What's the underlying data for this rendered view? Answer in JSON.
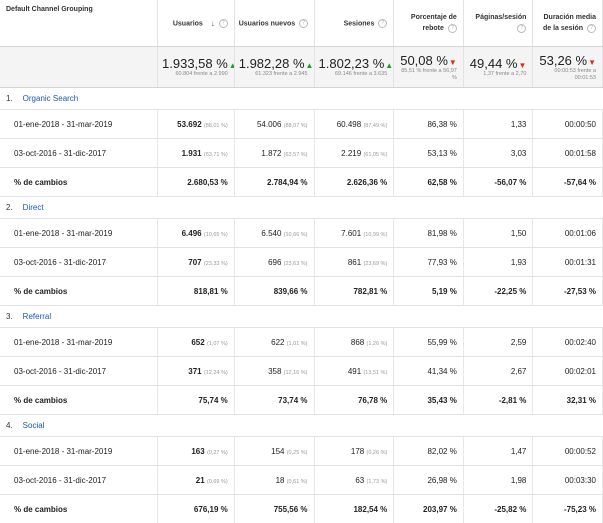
{
  "header": {
    "dimension": "Default Channel Grouping",
    "columns": [
      {
        "label": "Usuarios",
        "sorted": true
      },
      {
        "label": "Usuarios nuevos"
      },
      {
        "label": "Sesiones"
      },
      {
        "label": "Porcentaje de rebote"
      },
      {
        "label": "Páginas/sesión"
      },
      {
        "label": "Duración media de la sesión"
      }
    ]
  },
  "summary": [
    {
      "value": "1.933,58 %",
      "dir": "up",
      "detail": "60.804 frente a 2.990"
    },
    {
      "value": "1.982,28 %",
      "dir": "up",
      "detail": "61.323 frente a 2.945"
    },
    {
      "value": "1.802,23 %",
      "dir": "up",
      "detail": "69.146 frente a 3.635"
    },
    {
      "value": "50,08 %",
      "dir": "down",
      "detail": "85,51 % frente a 56,97 %"
    },
    {
      "value": "49,44 %",
      "dir": "down",
      "detail": "1,37 frente a 2,70"
    },
    {
      "value": "53,26 %",
      "dir": "down",
      "detail": "00:00:53 frente a 00:01:53"
    }
  ],
  "groups": [
    {
      "num": "1.",
      "name": "Organic Search",
      "rows": [
        {
          "label": "01-ene-2018 - 31-mar-2019",
          "cells": [
            {
              "v": "53.692",
              "p": "(88,01 %)"
            },
            {
              "v": "54.006",
              "p": "(88,07 %)"
            },
            {
              "v": "60.498",
              "p": "(87,49 %)"
            },
            {
              "v": "86,38 %"
            },
            {
              "v": "1,33"
            },
            {
              "v": "00:00:50"
            }
          ]
        },
        {
          "label": "03-oct-2016 - 31-dic-2017",
          "cells": [
            {
              "v": "1.931",
              "p": "(63,71 %)"
            },
            {
              "v": "1.872",
              "p": "(63,57 %)"
            },
            {
              "v": "2.219",
              "p": "(61,05 %)"
            },
            {
              "v": "53,13 %"
            },
            {
              "v": "3,03"
            },
            {
              "v": "00:01:58"
            }
          ]
        }
      ],
      "change": {
        "label": "% de cambios",
        "values": [
          "2.680,53 %",
          "2.784,94 %",
          "2.626,36 %",
          "62,58 %",
          "-56,07 %",
          "-57,64 %"
        ]
      }
    },
    {
      "num": "2.",
      "name": "Direct",
      "rows": [
        {
          "label": "01-ene-2018 - 31-mar-2019",
          "cells": [
            {
              "v": "6.496",
              "p": "(10,65 %)"
            },
            {
              "v": "6.540",
              "p": "(10,66 %)"
            },
            {
              "v": "7.601",
              "p": "(10,99 %)"
            },
            {
              "v": "81,98 %"
            },
            {
              "v": "1,50"
            },
            {
              "v": "00:01:06"
            }
          ]
        },
        {
          "label": "03-oct-2016 - 31-dic-2017",
          "cells": [
            {
              "v": "707",
              "p": "(23,33 %)"
            },
            {
              "v": "696",
              "p": "(23,63 %)"
            },
            {
              "v": "861",
              "p": "(23,69 %)"
            },
            {
              "v": "77,93 %"
            },
            {
              "v": "1,93"
            },
            {
              "v": "00:01:31"
            }
          ]
        }
      ],
      "change": {
        "label": "% de cambios",
        "values": [
          "818,81 %",
          "839,66 %",
          "782,81 %",
          "5,19 %",
          "-22,25 %",
          "-27,53 %"
        ]
      }
    },
    {
      "num": "3.",
      "name": "Referral",
      "rows": [
        {
          "label": "01-ene-2018 - 31-mar-2019",
          "cells": [
            {
              "v": "652",
              "p": "(1,07 %)"
            },
            {
              "v": "622",
              "p": "(1,01 %)"
            },
            {
              "v": "868",
              "p": "(1,26 %)"
            },
            {
              "v": "55,99 %"
            },
            {
              "v": "2,59"
            },
            {
              "v": "00:02:40"
            }
          ]
        },
        {
          "label": "03-oct-2016 - 31-dic-2017",
          "cells": [
            {
              "v": "371",
              "p": "(12,24 %)"
            },
            {
              "v": "358",
              "p": "(12,16 %)"
            },
            {
              "v": "491",
              "p": "(13,51 %)"
            },
            {
              "v": "41,34 %"
            },
            {
              "v": "2,67"
            },
            {
              "v": "00:02:01"
            }
          ]
        }
      ],
      "change": {
        "label": "% de cambios",
        "values": [
          "75,74 %",
          "73,74 %",
          "76,78 %",
          "35,43 %",
          "-2,81 %",
          "32,31 %"
        ]
      }
    },
    {
      "num": "4.",
      "name": "Social",
      "rows": [
        {
          "label": "01-ene-2018 - 31-mar-2019",
          "cells": [
            {
              "v": "163",
              "p": "(0,27 %)"
            },
            {
              "v": "154",
              "p": "(0,25 %)"
            },
            {
              "v": "178",
              "p": "(0,26 %)"
            },
            {
              "v": "82,02 %"
            },
            {
              "v": "1,47"
            },
            {
              "v": "00:00:52"
            }
          ]
        },
        {
          "label": "03-oct-2016 - 31-dic-2017",
          "cells": [
            {
              "v": "21",
              "p": "(0,69 %)"
            },
            {
              "v": "18",
              "p": "(0,61 %)"
            },
            {
              "v": "63",
              "p": "(1,73 %)"
            },
            {
              "v": "26,98 %"
            },
            {
              "v": "1,98"
            },
            {
              "v": "00:03:30"
            }
          ]
        }
      ],
      "change": {
        "label": "% de cambios",
        "values": [
          "676,19 %",
          "755,56 %",
          "182,54 %",
          "203,97 %",
          "-25,82 %",
          "-75,23 %"
        ]
      }
    }
  ],
  "icons": {
    "help": "question-circle-icon",
    "sort": "sort-down-arrow-icon",
    "up": "triangle-up-icon",
    "down": "triangle-down-icon"
  },
  "colors": {
    "up": "#1a9b2f",
    "down": "#d93025",
    "link": "#1a57b8"
  }
}
